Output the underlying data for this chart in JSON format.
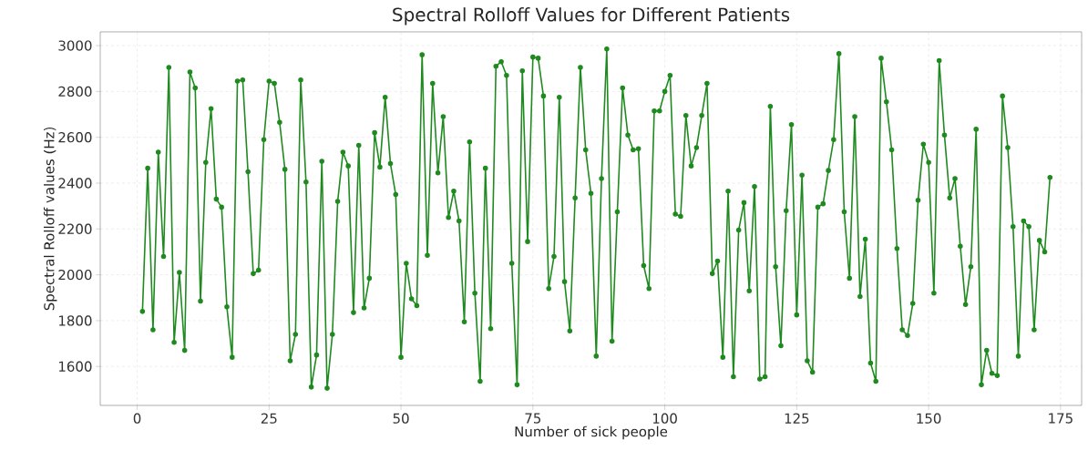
{
  "chart_data": {
    "type": "line",
    "title": "Spectral Rolloff Values for Different Patients",
    "xlabel": "Number of sick people",
    "ylabel": "Spectral Rolloff values (Hz)",
    "x": [
      1,
      2,
      3,
      4,
      5,
      6,
      7,
      8,
      9,
      10,
      11,
      12,
      13,
      14,
      15,
      16,
      17,
      18,
      19,
      20,
      21,
      22,
      23,
      24,
      25,
      26,
      27,
      28,
      29,
      30,
      31,
      32,
      33,
      34,
      35,
      36,
      37,
      38,
      39,
      40,
      41,
      42,
      43,
      44,
      45,
      46,
      47,
      48,
      49,
      50,
      51,
      52,
      53,
      54,
      55,
      56,
      57,
      58,
      59,
      60,
      61,
      62,
      63,
      64,
      65,
      66,
      67,
      68,
      69,
      70,
      71,
      72,
      73,
      74,
      75,
      76,
      77,
      78,
      79,
      80,
      81,
      82,
      83,
      84,
      85,
      86,
      87,
      88,
      89,
      90,
      91,
      92,
      93,
      94,
      95,
      96,
      97,
      98,
      99,
      100,
      101,
      102,
      103,
      104,
      105,
      106,
      107,
      108,
      109,
      110,
      111,
      112,
      113,
      114,
      115,
      116,
      117,
      118,
      119,
      120,
      121,
      122,
      123,
      124,
      125,
      126,
      127,
      128,
      129,
      130,
      131,
      132,
      133,
      134,
      135,
      136,
      137,
      138,
      139,
      140,
      141,
      142,
      143,
      144,
      145,
      146,
      147,
      148,
      149,
      150,
      151,
      152,
      153,
      154,
      155,
      156,
      157,
      158,
      159,
      160,
      161,
      162,
      163,
      164,
      165,
      166,
      167,
      168,
      169,
      170,
      171,
      172,
      173
    ],
    "series": [
      {
        "color": "#1f8a1f",
        "values": [
          1840,
          2465,
          1760,
          2535,
          2080,
          2905,
          1705,
          2010,
          1670,
          2885,
          2815,
          1885,
          2490,
          2725,
          2330,
          2295,
          1860,
          1640,
          2845,
          2850,
          2450,
          2005,
          2020,
          2590,
          2845,
          2835,
          2665,
          2460,
          1625,
          1740,
          2850,
          2405,
          1510,
          1650,
          2495,
          1505,
          1740,
          2320,
          2535,
          2475,
          1835,
          2565,
          1855,
          1985,
          2620,
          2470,
          2775,
          2485,
          2350,
          1640,
          2050,
          1895,
          1865,
          2960,
          2085,
          2835,
          2445,
          2690,
          2250,
          2365,
          2235,
          1795,
          2580,
          1920,
          1535,
          2465,
          1765,
          2910,
          2930,
          2870,
          2050,
          1520,
          2890,
          2145,
          2950,
          2945,
          2780,
          1940,
          2080,
          2775,
          1970,
          1755,
          2335,
          2905,
          2545,
          2355,
          1645,
          2420,
          2985,
          1710,
          2275,
          2815,
          2610,
          2545,
          2550,
          2040,
          1940,
          2715,
          2715,
          2800,
          2870,
          2265,
          2255,
          2695,
          2475,
          2555,
          2695,
          2835,
          2005,
          2060,
          1640,
          2365,
          1555,
          2195,
          2315,
          1930,
          2385,
          1545,
          1555,
          2735,
          2035,
          1690,
          2280,
          2655,
          1825,
          2435,
          1625,
          1575,
          2295,
          2310,
          2455,
          2590,
          2965,
          2275,
          1985,
          2690,
          1905,
          2155,
          1615,
          1535,
          2945,
          2755,
          2545,
          2115,
          1760,
          1735,
          1875,
          2325,
          2570,
          2490,
          1920,
          2935,
          2610,
          2335,
          2420,
          2125,
          1870,
          2035,
          2635,
          1520,
          1670,
          1570,
          1560,
          2780,
          2555,
          2210,
          1645,
          2235,
          2210,
          1760,
          2150,
          2100,
          2425
        ]
      }
    ],
    "xlim": [
      -7,
      179
    ],
    "ylim": [
      1430,
      3060
    ],
    "xticks": [
      0,
      25,
      50,
      75,
      100,
      125,
      150,
      175
    ],
    "yticks": [
      1600,
      1800,
      2000,
      2200,
      2400,
      2600,
      2800,
      3000
    ],
    "grid": true,
    "marker": "circle",
    "line_style": "solid"
  }
}
